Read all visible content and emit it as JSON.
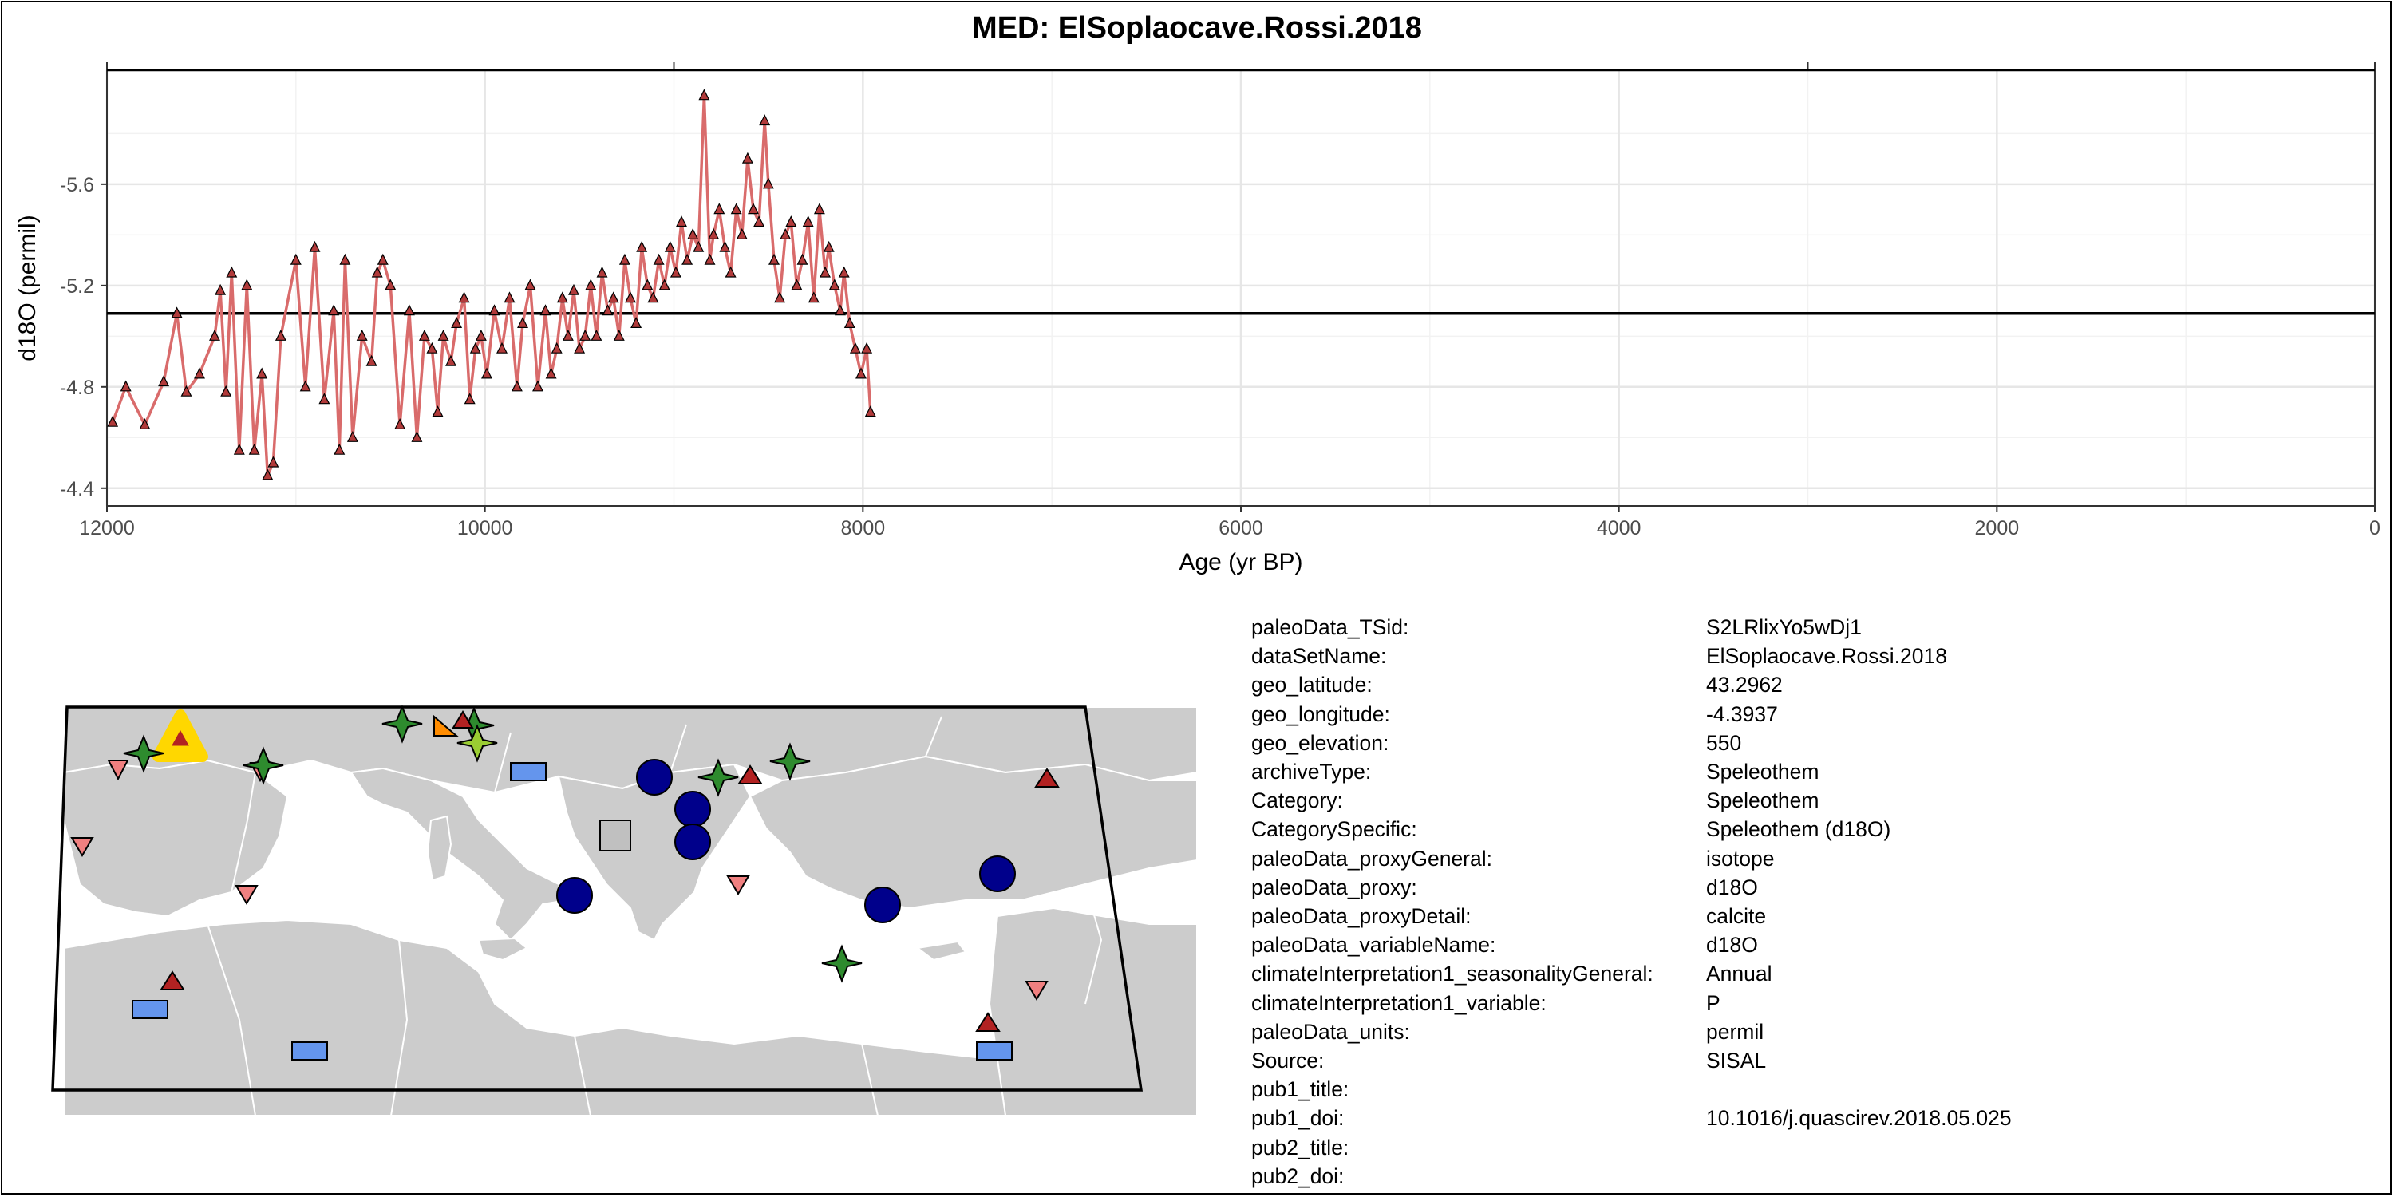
{
  "title": "MED: ElSoplaocave.Rossi.2018",
  "chart_data": {
    "type": "line",
    "title": "MED: ElSoplaocave.Rossi.2018",
    "xlabel": "Age (yr BP)",
    "ylabel": "d18O (permil)",
    "xlim": [
      12000,
      0
    ],
    "ylim": [
      -4.33,
      -6.05
    ],
    "x_reversed": true,
    "y_reversed": true,
    "x_ticks": [
      12000,
      10000,
      8000,
      6000,
      4000,
      2000,
      0
    ],
    "x_tick_labels": [
      "12000",
      "10000",
      "8000",
      "6000",
      "4000",
      "2000",
      "0"
    ],
    "y_ticks": [
      -5.6,
      -5.2,
      -4.8,
      -4.4
    ],
    "y_tick_labels": [
      "-5.6",
      "-5.2",
      "-4.8",
      "-4.4"
    ],
    "grid": true,
    "reference_line_y": -5.09,
    "line_color": "#d96b6b",
    "marker_color": "#b13a3a",
    "series": [
      {
        "x": [
          11970,
          11900,
          11800,
          11700,
          11630,
          11580,
          11510,
          11430,
          11400,
          11370,
          11340,
          11300,
          11260,
          11220,
          11180,
          11150,
          11120,
          11080,
          11000,
          10950,
          10900,
          10850,
          10800,
          10770,
          10740,
          10700,
          10650,
          10600,
          10570,
          10540,
          10500,
          10450,
          10400,
          10360,
          10320,
          10280,
          10250,
          10220,
          10180,
          10150,
          10110,
          10080,
          10050,
          10020,
          9990,
          9950,
          9910,
          9870,
          9830,
          9800,
          9760,
          9720,
          9680,
          9650,
          9620,
          9590,
          9560,
          9530,
          9500,
          9470,
          9440,
          9410,
          9380,
          9350,
          9320,
          9290,
          9260,
          9230,
          9200,
          9170,
          9140,
          9110,
          9080,
          9050,
          9020,
          8990,
          8960,
          8930,
          8900,
          8870,
          8840,
          8810,
          8790,
          8760,
          8730,
          8700,
          8670,
          8640,
          8610,
          8580,
          8550,
          8520,
          8500,
          8470,
          8440,
          8410,
          8380,
          8350,
          8320,
          8290,
          8260,
          8230,
          8200,
          8180,
          8150,
          8120,
          8100,
          8070,
          8040,
          8010,
          7980,
          7960
        ],
        "y": [
          -4.66,
          -4.8,
          -4.65,
          -4.82,
          -5.09,
          -4.78,
          -4.85,
          -5.0,
          -5.18,
          -4.78,
          -5.25,
          -4.55,
          -5.2,
          -4.55,
          -4.85,
          -4.45,
          -4.5,
          -5.0,
          -5.3,
          -4.8,
          -5.35,
          -4.75,
          -5.1,
          -4.55,
          -5.3,
          -4.6,
          -5.0,
          -4.9,
          -5.25,
          -5.3,
          -5.2,
          -4.65,
          -5.1,
          -4.6,
          -5.0,
          -4.95,
          -4.7,
          -5.0,
          -4.9,
          -5.05,
          -5.15,
          -4.75,
          -4.95,
          -5.0,
          -4.85,
          -5.1,
          -4.95,
          -5.15,
          -4.8,
          -5.05,
          -5.2,
          -4.8,
          -5.1,
          -4.85,
          -4.95,
          -5.15,
          -5.0,
          -5.18,
          -4.95,
          -5.0,
          -5.2,
          -5.0,
          -5.25,
          -5.1,
          -5.15,
          -5.0,
          -5.3,
          -5.15,
          -5.05,
          -5.35,
          -5.2,
          -5.15,
          -5.3,
          -5.2,
          -5.35,
          -5.25,
          -5.45,
          -5.3,
          -5.4,
          -5.35,
          -5.95,
          -5.3,
          -5.4,
          -5.5,
          -5.35,
          -5.25,
          -5.5,
          -5.4,
          -5.7,
          -5.5,
          -5.45,
          -5.85,
          -5.6,
          -5.3,
          -5.15,
          -5.4,
          -5.45,
          -5.2,
          -5.3,
          -5.45,
          -5.15,
          -5.5,
          -5.25,
          -5.35,
          -5.2,
          -5.1,
          -5.25,
          -5.05,
          -4.95,
          -4.85,
          -4.95,
          -4.7
        ]
      }
    ]
  },
  "map": {
    "water_color": "#ffffff",
    "land_color": "#cccccc",
    "legend_note": ""
  },
  "metadata": [
    {
      "key": "paleoData_TSid:",
      "value": "S2LRlixYo5wDj1"
    },
    {
      "key": "dataSetName:",
      "value": "ElSoplaocave.Rossi.2018"
    },
    {
      "key": "geo_latitude:",
      "value": "43.2962"
    },
    {
      "key": "geo_longitude:",
      "value": "-4.3937"
    },
    {
      "key": "geo_elevation:",
      "value": "550"
    },
    {
      "key": "archiveType:",
      "value": "Speleothem"
    },
    {
      "key": "Category:",
      "value": "Speleothem"
    },
    {
      "key": "CategorySpecific:",
      "value": "Speleothem (d18O)"
    },
    {
      "key": "paleoData_proxyGeneral:",
      "value": "isotope"
    },
    {
      "key": "paleoData_proxy:",
      "value": "d18O"
    },
    {
      "key": "paleoData_proxyDetail:",
      "value": "calcite"
    },
    {
      "key": "paleoData_variableName:",
      "value": "d18O"
    },
    {
      "key": "climateInterpretation1_seasonalityGeneral:",
      "value": "Annual"
    },
    {
      "key": "climateInterpretation1_variable:",
      "value": "P"
    },
    {
      "key": "paleoData_units:",
      "value": "permil"
    },
    {
      "key": "Source:",
      "value": "SISAL"
    },
    {
      "key": "pub1_title:",
      "value": ""
    },
    {
      "key": "pub1_doi:",
      "value": "10.1016/j.quascirev.2018.05.025"
    },
    {
      "key": "pub2_title:",
      "value": ""
    },
    {
      "key": "pub2_doi:",
      "value": ""
    }
  ]
}
